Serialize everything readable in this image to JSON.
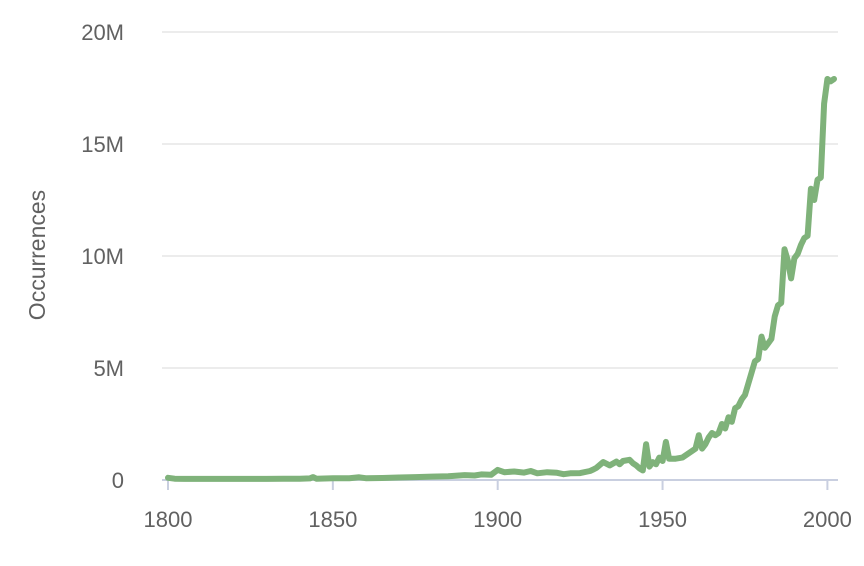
{
  "chart_data": {
    "type": "line",
    "title": "",
    "xlabel": "",
    "ylabel": "Occurrences",
    "xlim": [
      1800,
      2002
    ],
    "ylim": [
      0,
      20000000
    ],
    "x_ticks": [
      1800,
      1850,
      1900,
      1950,
      2000
    ],
    "x_tick_labels": [
      "1800",
      "1850",
      "1900",
      "1950",
      "2000"
    ],
    "y_ticks": [
      0,
      5000000,
      10000000,
      15000000,
      20000000
    ],
    "y_tick_labels": [
      "0",
      "5M",
      "10M",
      "15M",
      "20M"
    ],
    "grid": true,
    "legend": "none",
    "colors": {
      "line": "#7fb27a",
      "grid": "#e6e6e6",
      "axis": "#c9cfe0",
      "text": "#616161"
    },
    "series": [
      {
        "x": [
          1800,
          1802,
          1805,
          1810,
          1815,
          1820,
          1825,
          1830,
          1835,
          1840,
          1843,
          1844,
          1845,
          1850,
          1855,
          1858,
          1860,
          1865,
          1870,
          1875,
          1880,
          1885,
          1890,
          1893,
          1895,
          1898,
          1900,
          1902,
          1905,
          1908,
          1910,
          1912,
          1915,
          1918,
          1920,
          1922,
          1925,
          1928,
          1929,
          1930,
          1932,
          1934,
          1936,
          1937,
          1938,
          1940,
          1941,
          1942,
          1943,
          1944,
          1945,
          1946,
          1947,
          1948,
          1949,
          1950,
          1951,
          1952,
          1954,
          1956,
          1958,
          1960,
          1961,
          1962,
          1963,
          1964,
          1965,
          1966,
          1967,
          1968,
          1969,
          1970,
          1971,
          1972,
          1973,
          1974,
          1975,
          1976,
          1977,
          1978,
          1979,
          1980,
          1981,
          1982,
          1983,
          1984,
          1985,
          1986,
          1987,
          1988,
          1989,
          1990,
          1991,
          1992,
          1993,
          1994,
          1995,
          1996,
          1997,
          1998,
          1999,
          2000,
          2001,
          2002
        ],
        "y": [
          100000,
          60000,
          50000,
          50000,
          50000,
          50000,
          50000,
          50000,
          60000,
          60000,
          70000,
          130000,
          60000,
          80000,
          80000,
          120000,
          80000,
          90000,
          110000,
          130000,
          150000,
          170000,
          220000,
          200000,
          250000,
          230000,
          450000,
          350000,
          380000,
          330000,
          400000,
          300000,
          350000,
          320000,
          260000,
          300000,
          310000,
          400000,
          470000,
          550000,
          800000,
          650000,
          820000,
          700000,
          850000,
          900000,
          750000,
          650000,
          520000,
          430000,
          1600000,
          600000,
          800000,
          700000,
          1000000,
          850000,
          1700000,
          950000,
          950000,
          1000000,
          1200000,
          1400000,
          2000000,
          1400000,
          1600000,
          1900000,
          2100000,
          2000000,
          2100000,
          2500000,
          2300000,
          2800000,
          2600000,
          3200000,
          3300000,
          3600000,
          3800000,
          4300000,
          4800000,
          5300000,
          5400000,
          6400000,
          5900000,
          6100000,
          6300000,
          7300000,
          7800000,
          7900000,
          10300000,
          9800000,
          9000000,
          9900000,
          10100000,
          10500000,
          10800000,
          10900000,
          13000000,
          12500000,
          13400000,
          13500000,
          16800000,
          17900000,
          17800000,
          17900000
        ]
      }
    ]
  }
}
